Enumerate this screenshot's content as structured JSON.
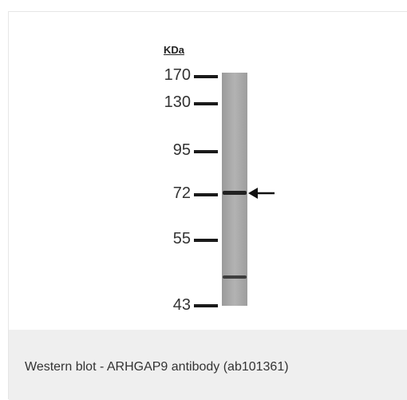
{
  "figure": {
    "unit_label": "KDa",
    "markers": [
      {
        "label": "170",
        "kda": 170
      },
      {
        "label": "130",
        "kda": 130
      },
      {
        "label": "95",
        "kda": 95
      },
      {
        "label": "72",
        "kda": 72
      },
      {
        "label": "55",
        "kda": 55
      },
      {
        "label": "43",
        "kda": 43
      }
    ],
    "bands_kda": [
      72,
      47
    ],
    "arrow_target_kda": 72
  },
  "caption": {
    "text": "Western blot - ARHGAP9 antibody (ab101361)"
  },
  "colors": {
    "lane": "#a9a9a9",
    "band": "#1a1a1a",
    "caption_bg": "#efefef"
  }
}
